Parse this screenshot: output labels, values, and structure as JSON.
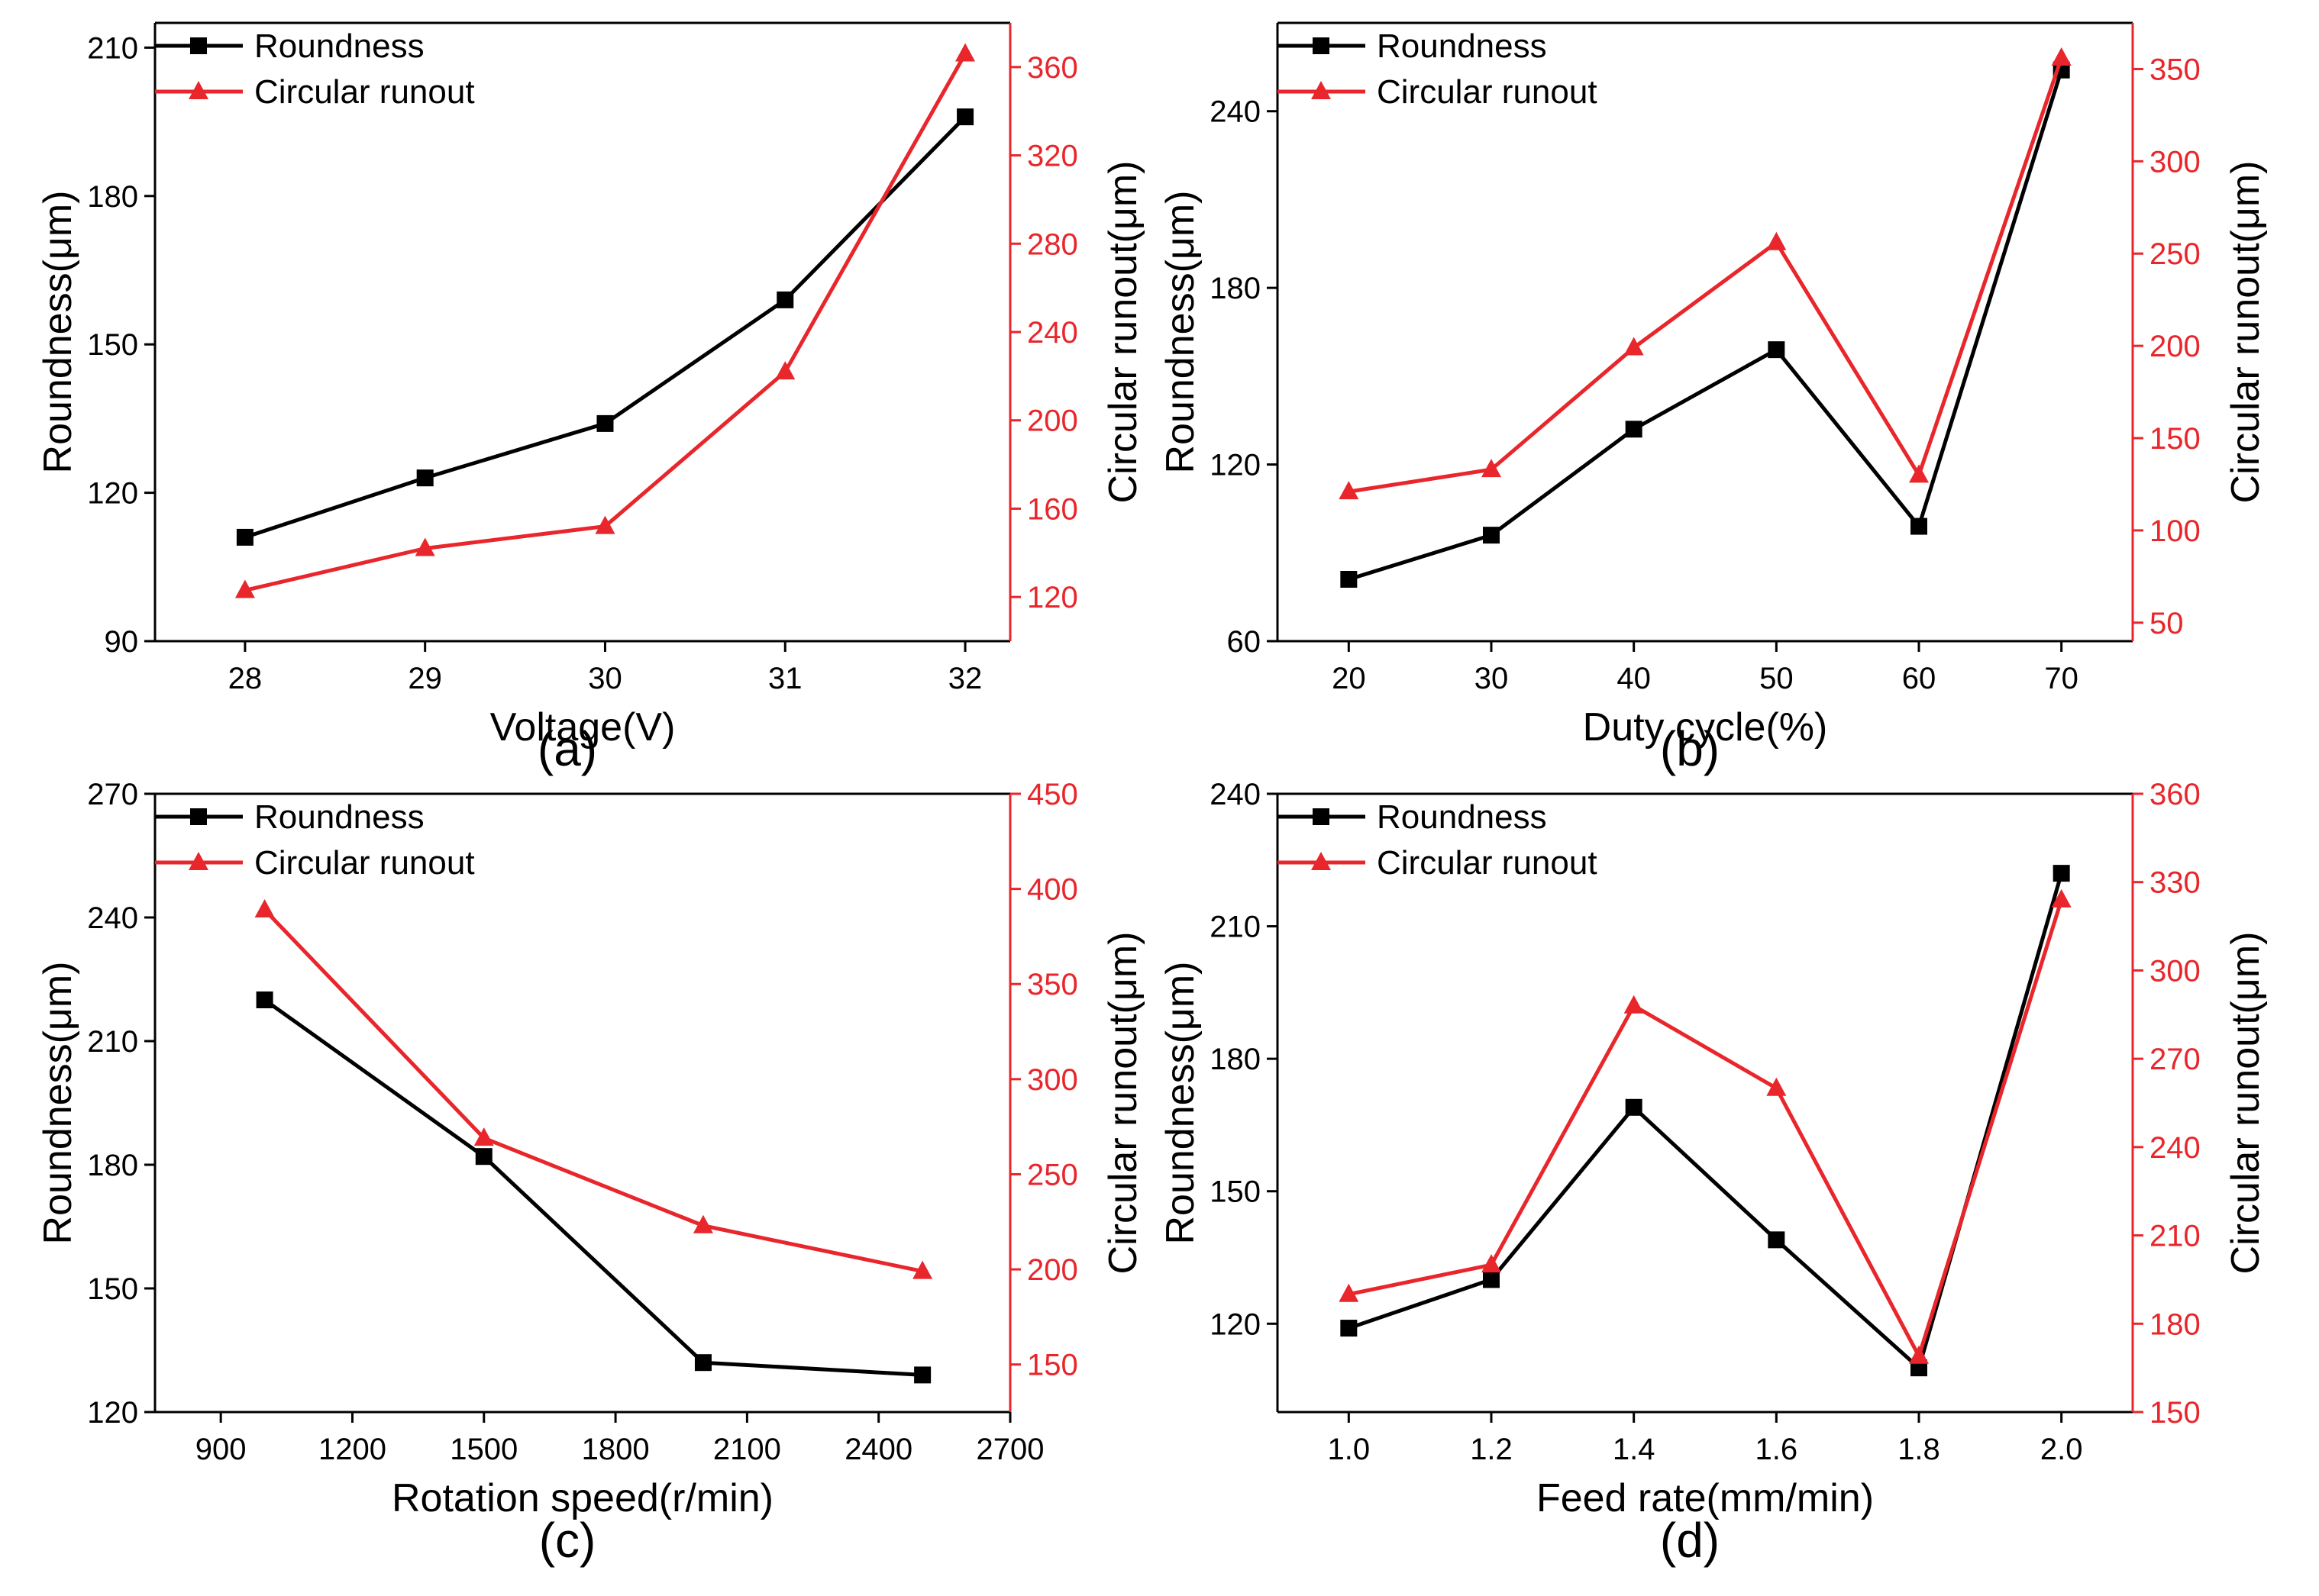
{
  "colors": {
    "roundness": "#000000",
    "runout": "#e8262b"
  },
  "chart_data": [
    {
      "type": "line",
      "panel_label": "(a)",
      "xlabel": "Voltage(V)",
      "ylabel_left": "Roundness(μm)",
      "ylabel_right": "Circular runout(μm)",
      "x": [
        28,
        29,
        30,
        31,
        32
      ],
      "xlim": [
        27.5,
        32.25
      ],
      "xticks": [
        28,
        29,
        30,
        31,
        32
      ],
      "xtick_labels": [
        "28",
        "29",
        "30",
        "31",
        "32"
      ],
      "ylim_left": [
        90,
        215
      ],
      "yticks_left": [
        90,
        120,
        150,
        180,
        210
      ],
      "ylim_right": [
        100,
        380
      ],
      "yticks_right": [
        120,
        160,
        200,
        240,
        280,
        320,
        360
      ],
      "legend": [
        "Roundness",
        "Circular runout"
      ],
      "legend_position": "top-left",
      "series": [
        {
          "name": "Roundness",
          "axis": "left",
          "marker": "square",
          "values": [
            111,
            123,
            134,
            159,
            196
          ]
        },
        {
          "name": "Circular runout",
          "axis": "right",
          "marker": "triangle",
          "values": [
            123,
            142,
            152,
            222,
            366
          ]
        }
      ]
    },
    {
      "type": "line",
      "panel_label": "(b)",
      "xlabel": "Duty cycle(%)",
      "ylabel_left": "Roundness(μm)",
      "ylabel_right": "Circular runout(μm)",
      "x": [
        20,
        30,
        40,
        50,
        60,
        70
      ],
      "xlim": [
        15,
        75
      ],
      "xticks": [
        20,
        30,
        40,
        50,
        60,
        70
      ],
      "xtick_labels": [
        "20",
        "30",
        "40",
        "50",
        "60",
        "70"
      ],
      "ylim_left": [
        60,
        270
      ],
      "yticks_left": [
        60,
        120,
        180,
        240
      ],
      "ylim_right": [
        40,
        375
      ],
      "yticks_right": [
        50,
        100,
        150,
        200,
        250,
        300,
        350
      ],
      "legend": [
        "Roundness",
        "Circular runout"
      ],
      "legend_position": "top-left",
      "series": [
        {
          "name": "Roundness",
          "axis": "left",
          "marker": "square",
          "values": [
            81,
            96,
            132,
            159,
            99,
            254
          ]
        },
        {
          "name": "Circular runout",
          "axis": "right",
          "marker": "triangle",
          "values": [
            121,
            133,
            199,
            256,
            130,
            356
          ]
        }
      ]
    },
    {
      "type": "line",
      "panel_label": "(c)",
      "xlabel": "Rotation speed(r/min)",
      "ylabel_left": "Roundness(μm)",
      "ylabel_right": "Circular runout(μm)",
      "x": [
        1000,
        1500,
        2000,
        2500
      ],
      "xlim": [
        750,
        2700
      ],
      "xticks": [
        900,
        1200,
        1500,
        1800,
        2100,
        2400,
        2700
      ],
      "xtick_labels": [
        "900",
        "1200",
        "1500",
        "1800",
        "2100",
        "2400",
        "2700"
      ],
      "ylim_left": [
        120,
        270
      ],
      "yticks_left": [
        120,
        150,
        180,
        210,
        240,
        270
      ],
      "ylim_right": [
        125,
        450
      ],
      "yticks_right": [
        150,
        200,
        250,
        300,
        350,
        400,
        450
      ],
      "legend": [
        "Roundness",
        "Circular runout"
      ],
      "legend_position": "top-left",
      "series": [
        {
          "name": "Roundness",
          "axis": "left",
          "marker": "square",
          "values": [
            220,
            182,
            132,
            129
          ]
        },
        {
          "name": "Circular runout",
          "axis": "right",
          "marker": "triangle",
          "values": [
            389,
            269,
            223,
            199
          ]
        }
      ]
    },
    {
      "type": "line",
      "panel_label": "(d)",
      "xlabel": "Feed rate(mm/min)",
      "ylabel_left": "Roundness(μm)",
      "ylabel_right": "Circular runout(μm)",
      "x": [
        1.0,
        1.2,
        1.4,
        1.6,
        1.8,
        2.0
      ],
      "xlim": [
        0.9,
        2.1
      ],
      "xticks": [
        1.0,
        1.2,
        1.4,
        1.6,
        1.8,
        2.0
      ],
      "xtick_labels": [
        "1.0",
        "1.2",
        "1.4",
        "1.6",
        "1.8",
        "2.0"
      ],
      "ylim_left": [
        100,
        240
      ],
      "yticks_left": [
        120,
        150,
        180,
        210,
        240
      ],
      "ylim_right": [
        150,
        360
      ],
      "yticks_right": [
        150,
        180,
        210,
        240,
        270,
        300,
        330,
        360
      ],
      "legend": [
        "Roundness",
        "Circular runout"
      ],
      "legend_position": "top-left",
      "series": [
        {
          "name": "Roundness",
          "axis": "left",
          "marker": "square",
          "values": [
            119,
            130,
            169,
            139,
            110,
            222
          ]
        },
        {
          "name": "Circular runout",
          "axis": "right",
          "marker": "triangle",
          "values": [
            190,
            200,
            288,
            260,
            169,
            324
          ]
        }
      ]
    }
  ]
}
